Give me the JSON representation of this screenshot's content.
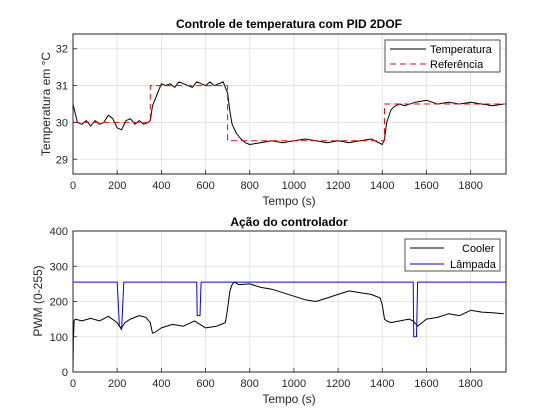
{
  "chart_data": [
    {
      "type": "line",
      "title": "Controle de temperatura com PID 2DOF",
      "xlabel": "Tempo (s)",
      "ylabel": "Temperatura em °C",
      "xlim": [
        0,
        1960
      ],
      "ylim": [
        28.6,
        32.4
      ],
      "xticks": [
        0,
        200,
        400,
        600,
        800,
        1000,
        1200,
        1400,
        1600,
        1800
      ],
      "yticks": [
        29,
        30,
        31,
        32
      ],
      "grid": true,
      "legend_position": "top-right",
      "series": [
        {
          "name": "Temperatura",
          "color": "#000000",
          "style": "solid",
          "x": [
            0,
            20,
            40,
            60,
            80,
            100,
            120,
            140,
            160,
            180,
            200,
            220,
            240,
            260,
            280,
            300,
            320,
            340,
            350,
            360,
            380,
            400,
            420,
            440,
            460,
            480,
            500,
            520,
            540,
            560,
            580,
            600,
            620,
            640,
            660,
            680,
            700,
            710,
            720,
            740,
            760,
            780,
            800,
            850,
            900,
            950,
            1000,
            1050,
            1100,
            1150,
            1200,
            1250,
            1300,
            1350,
            1400,
            1410,
            1420,
            1440,
            1460,
            1480,
            1500,
            1550,
            1600,
            1650,
            1700,
            1750,
            1800,
            1850,
            1900,
            1950
          ],
          "y": [
            30.5,
            30.0,
            29.95,
            30.05,
            29.9,
            30.05,
            29.95,
            30.0,
            30.2,
            30.1,
            29.85,
            29.8,
            30.05,
            30.1,
            29.95,
            30.05,
            29.95,
            30.0,
            30.05,
            30.45,
            30.75,
            31.05,
            31.0,
            31.05,
            30.95,
            31.1,
            31.05,
            31.0,
            30.95,
            31.1,
            31.05,
            31.0,
            31.1,
            31.0,
            31.05,
            31.1,
            30.8,
            30.3,
            29.95,
            29.7,
            29.55,
            29.45,
            29.4,
            29.45,
            29.5,
            29.45,
            29.5,
            29.55,
            29.5,
            29.45,
            29.5,
            29.45,
            29.5,
            29.55,
            29.4,
            29.55,
            30.0,
            30.35,
            30.45,
            30.5,
            30.45,
            30.55,
            30.6,
            30.5,
            30.55,
            30.5,
            30.55,
            30.5,
            30.45,
            30.5
          ]
        },
        {
          "name": "Referência",
          "color": "#FF0000",
          "style": "dashed",
          "x": [
            0,
            350,
            350,
            700,
            700,
            1410,
            1410,
            1960
          ],
          "y": [
            30.0,
            30.0,
            31.0,
            31.0,
            29.5,
            29.5,
            30.5,
            30.5
          ]
        }
      ]
    },
    {
      "type": "line",
      "title": "Ação do controlador",
      "xlabel": "Tempo (s)",
      "ylabel": "PWM (0-255)",
      "xlim": [
        0,
        1960
      ],
      "ylim": [
        0,
        400
      ],
      "xticks": [
        0,
        200,
        400,
        600,
        800,
        1000,
        1200,
        1400,
        1600,
        1800
      ],
      "yticks": [
        0,
        100,
        200,
        300,
        400
      ],
      "grid": true,
      "legend_position": "top-right",
      "series": [
        {
          "name": "Cooler",
          "color": "#000000",
          "style": "solid",
          "x": [
            0,
            2,
            5,
            10,
            40,
            80,
            120,
            160,
            200,
            210,
            220,
            235,
            260,
            300,
            330,
            350,
            360,
            370,
            400,
            450,
            500,
            550,
            600,
            650,
            690,
            700,
            710,
            720,
            730,
            750,
            800,
            850,
            900,
            950,
            1000,
            1050,
            1100,
            1150,
            1200,
            1250,
            1300,
            1350,
            1390,
            1400,
            1410,
            1420,
            1440,
            1480,
            1520,
            1540,
            1560,
            1600,
            1650,
            1700,
            1750,
            1800,
            1850,
            1900,
            1950
          ],
          "y": [
            0,
            90,
            145,
            150,
            145,
            152,
            145,
            158,
            140,
            130,
            125,
            140,
            150,
            160,
            155,
            140,
            110,
            112,
            125,
            135,
            130,
            145,
            125,
            130,
            140,
            180,
            230,
            248,
            255,
            248,
            250,
            240,
            235,
            225,
            215,
            205,
            200,
            210,
            220,
            230,
            225,
            220,
            210,
            190,
            150,
            145,
            140,
            145,
            150,
            145,
            130,
            150,
            155,
            165,
            160,
            175,
            170,
            168,
            165
          ]
        },
        {
          "name": "Lâmpada",
          "color": "#0000FF",
          "style": "solid",
          "x": [
            0,
            200,
            210,
            220,
            230,
            560,
            562,
            575,
            580,
            1540,
            1542,
            1555,
            1560,
            1960
          ],
          "y": [
            255,
            255,
            130,
            120,
            255,
            255,
            160,
            160,
            255,
            255,
            100,
            100,
            255,
            255
          ]
        }
      ]
    }
  ]
}
